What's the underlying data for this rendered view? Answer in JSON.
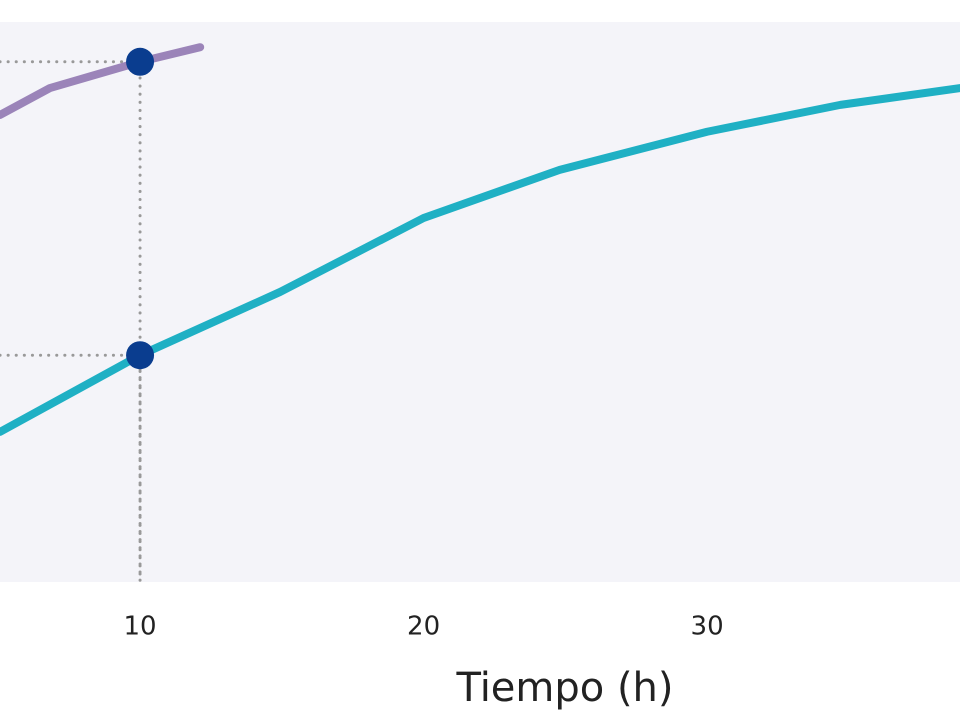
{
  "chart_data": {
    "type": "line",
    "x_label": "Tiempo (h)",
    "xlim": [
      5.06,
      38.92
    ],
    "ylim": [
      0,
      100
    ],
    "xticks": [
      10,
      20,
      30
    ],
    "background": "#f4f4f9",
    "series": [
      {
        "color": "#9b84b9",
        "x": [
          5.06,
          6.82,
          10,
          12.12
        ],
        "values": [
          83.4,
          88.2,
          92.9,
          95.5
        ]
      },
      {
        "color": "#1fb0c4",
        "x": [
          5.06,
          10,
          14.94,
          20,
          24.8,
          30,
          34.7,
          38.92
        ],
        "values": [
          26.8,
          40.5,
          51.8,
          65,
          73.6,
          80.4,
          85.2,
          88.2
        ]
      }
    ],
    "markers": {
      "color": "#0a3d8f",
      "x": [
        10,
        10
      ],
      "y": [
        92.9,
        40.5
      ]
    }
  }
}
